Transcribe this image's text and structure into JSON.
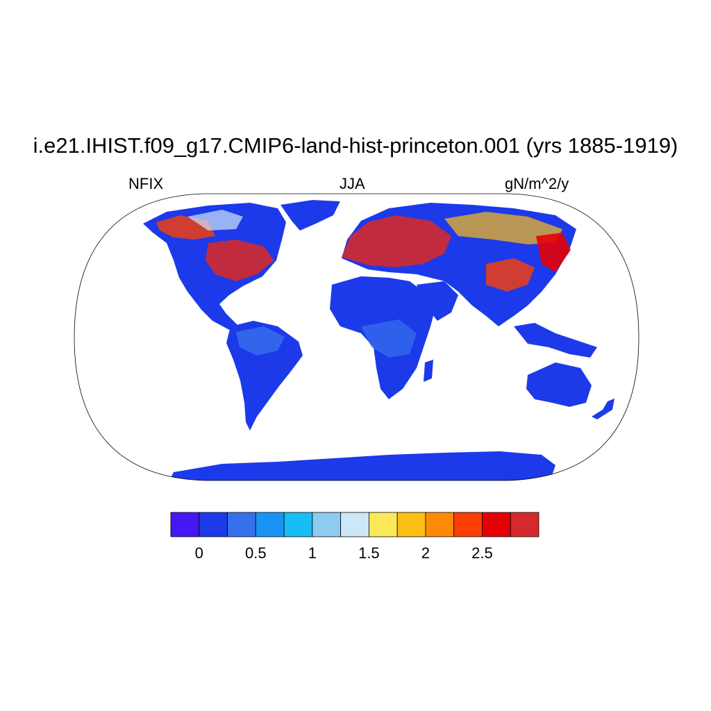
{
  "title": "i.e21.IHIST.f09_g17.CMIP6-land-hist-princeton.001 (yrs 1885-1919)",
  "variable": "NFIX",
  "season": "JJA",
  "units": "gN/m^2/y",
  "colorbar": {
    "colors": [
      "#4517f5",
      "#1c3ae9",
      "#3670ec",
      "#1a94f4",
      "#18bdf6",
      "#8ecbf0",
      "#cde6f8",
      "#fde85a",
      "#fdbe15",
      "#fd8a06",
      "#fc3f05",
      "#e50005",
      "#d42a2d"
    ],
    "tick_labels": [
      "0",
      "0.5",
      "1",
      "1.5",
      "2",
      "2.5"
    ]
  }
}
